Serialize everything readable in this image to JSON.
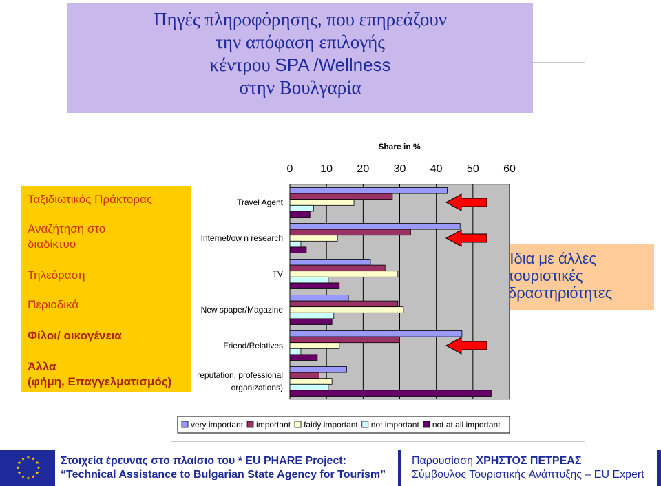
{
  "title": {
    "line1": "Πηγές πληροφόρησης, που επηρεάζουν",
    "line2": "την απόφαση επιλογής",
    "line3_a": "κέντρου ",
    "line3_b": "SPA /Wellness",
    "line4": "στην Βουλγαρία"
  },
  "greek_labels": [
    "Ταξιδιωτικός Πράκτορας",
    "Αναζήτηση στο",
    "διαδίκτυο",
    "Τηλεόραση",
    "Περιοδικά",
    "Φίλοι/ οικογένεια",
    "Άλλα",
    "(φήμη, Επαγγελματισμός)"
  ],
  "note": "Ίδια με άλλες τουριστικές δραστηριότητες",
  "note_lines": [
    "Ίδια με άλλες",
    "τουριστικές",
    "δραστηριότητες"
  ],
  "colors": {
    "very_important": "#9999ff",
    "important": "#993366",
    "fairly_important": "#ffffcc",
    "not_important": "#ccffff",
    "not_at_all_important": "#660066",
    "arrow": "#ff0000",
    "plot_bg": "#c0c0c0",
    "title_bg": "#c9b8ec",
    "label_box": "#ffcc00",
    "note_box": "#ffcc99",
    "text_blue": "#1f2a9a"
  },
  "chart_data": {
    "type": "bar",
    "orientation": "horizontal",
    "xlabel": "Share in %",
    "xlim": [
      0,
      60
    ],
    "xticks": [
      0,
      10,
      20,
      30,
      40,
      50,
      60
    ],
    "grid": true,
    "legend_position": "bottom",
    "categories": [
      "Travel Agent",
      "Internet/ow n research",
      "TV",
      "New spaper/Magazine",
      "Friend/Relatives",
      "reputation, professional organizations)"
    ],
    "category_label_lines": [
      [
        "Travel Agent"
      ],
      [
        "Internet/ow n research"
      ],
      [
        "TV"
      ],
      [
        "New spaper/Magazine"
      ],
      [
        "Friend/Relatives"
      ],
      [
        "reputation, professional",
        "organizations)"
      ]
    ],
    "series": [
      {
        "name": "very important",
        "values": [
          43,
          46.5,
          22,
          16,
          47,
          15.5
        ]
      },
      {
        "name": "important",
        "values": [
          28,
          33,
          26,
          29.5,
          30,
          8
        ]
      },
      {
        "name": "fairly important",
        "values": [
          17.5,
          13,
          29.5,
          31,
          13.5,
          11.5
        ]
      },
      {
        "name": "not important",
        "values": [
          6.5,
          3,
          10.5,
          12,
          3,
          10.5
        ]
      },
      {
        "name": "not at all important",
        "values": [
          5.5,
          4.5,
          13.5,
          11.5,
          7.5,
          55
        ]
      }
    ],
    "arrow_categories": [
      0,
      1,
      4
    ]
  },
  "footer": {
    "left_line1": "Στοιχεία έρευνας στο πλαίσιο του * EU PHARE Project:",
    "left_line2": "“Technical Assistance to Bulgarian State Agency for Tourism”",
    "right_line1_a": "Παρουσίαση ",
    "right_line1_b": "ΧΡΗΣΤΟΣ ΠΕΤΡΕΑΣ",
    "right_line2": "Σύμβουλος Τουριστικής Ανάπτυξης – EU Expert"
  }
}
